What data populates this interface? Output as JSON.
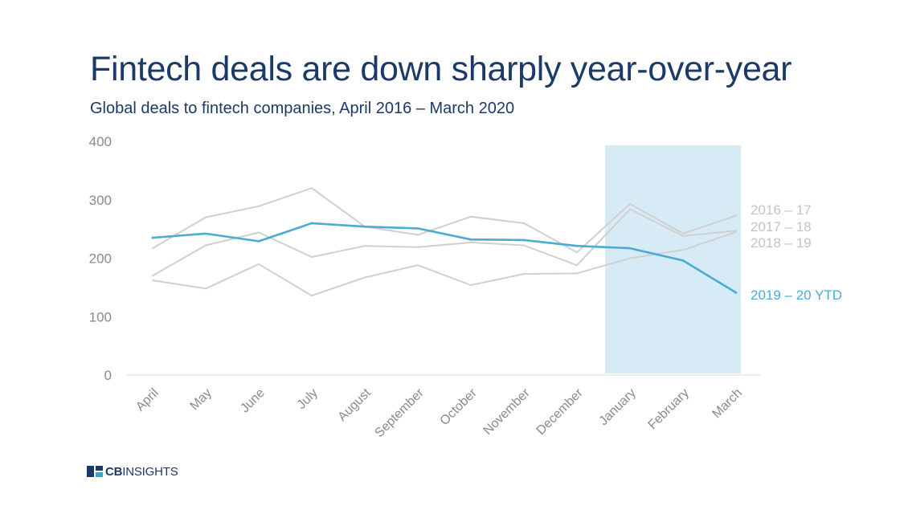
{
  "header": {
    "title": "Fintech deals are down sharply year-over-year",
    "subtitle": "Global deals to fintech companies, April 2016 – March 2020"
  },
  "logo": {
    "brand_bold": "CB",
    "brand_light": "INSIGHTS"
  },
  "colors": {
    "title": "#1b3a68",
    "highlight_band": "#d6ebf5",
    "gray_series": "#d0d0d0",
    "current_series": "#4aabd3",
    "axis_text": "#8a8a8a"
  },
  "chart_data": {
    "type": "line",
    "categories": [
      "April",
      "May",
      "June",
      "July",
      "August",
      "September",
      "October",
      "November",
      "December",
      "January",
      "February",
      "March"
    ],
    "ylim": [
      0,
      400
    ],
    "yticks": [
      "0",
      "100",
      "200",
      "300",
      "400"
    ],
    "grid": false,
    "highlight_range": [
      "January",
      "March"
    ],
    "series": [
      {
        "name": "2016 – 17",
        "values": [
          217,
          270,
          289,
          320,
          254,
          240,
          271,
          260,
          210,
          293,
          242,
          273
        ],
        "color": "#d0d0d0"
      },
      {
        "name": "2017 – 18",
        "values": [
          170,
          222,
          244,
          202,
          221,
          219,
          227,
          222,
          188,
          284,
          238,
          247
        ],
        "color": "#d0d0d0"
      },
      {
        "name": "2018 – 19",
        "values": [
          162,
          148,
          190,
          136,
          167,
          188,
          154,
          173,
          174,
          200,
          214,
          245
        ],
        "color": "#d0d0d0"
      },
      {
        "name": "2019 – 20 YTD",
        "values": [
          235,
          242,
          229,
          260,
          254,
          251,
          232,
          231,
          221,
          217,
          196,
          141
        ],
        "color": "#4aabd3"
      }
    ]
  }
}
